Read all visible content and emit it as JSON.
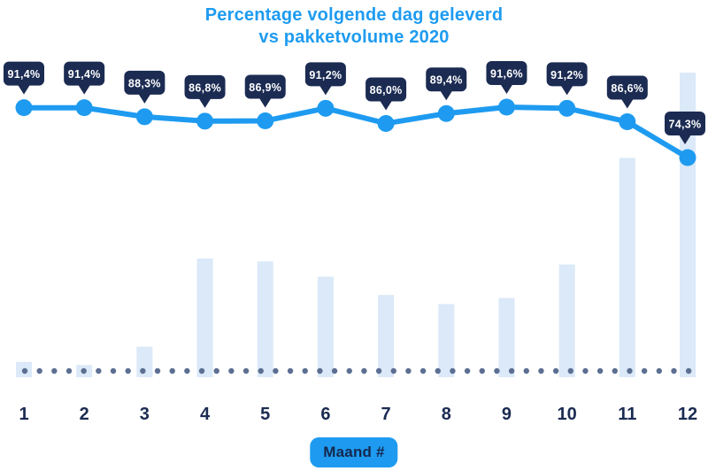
{
  "title": {
    "line1": "Percentage volgende dag geleverd",
    "line2": "vs pakketvolume 2020"
  },
  "x_axis": {
    "badge_label": "Maand #",
    "categories": [
      "1",
      "2",
      "3",
      "4",
      "5",
      "6",
      "7",
      "8",
      "9",
      "10",
      "11",
      "12"
    ]
  },
  "colors": {
    "accent_blue": "#1E9BF0",
    "navy": "#1B2B52",
    "bar_fill": "#DBE9F8",
    "baseline_dot": "#5C6F92",
    "badge_text": "#FFFFFF",
    "background": "#FFFFFF"
  },
  "chart_data": {
    "type": "combo",
    "title": "Percentage volgende dag geleverd vs pakketvolume 2020",
    "xlabel": "Maand #",
    "ylabel": "",
    "categories": [
      "1",
      "2",
      "3",
      "4",
      "5",
      "6",
      "7",
      "8",
      "9",
      "10",
      "11",
      "12"
    ],
    "legend": "none",
    "gridlines": "none",
    "series": [
      {
        "name": "Percentage volgende dag geleverd",
        "type": "line",
        "values": [
          91.4,
          91.4,
          88.3,
          86.8,
          86.9,
          91.2,
          86.0,
          89.4,
          91.6,
          91.2,
          86.6,
          74.3
        ],
        "point_labels": [
          "91,4%",
          "91,4%",
          "88,3%",
          "86,8%",
          "86,9%",
          "91,2%",
          "86,0%",
          "89,4%",
          "91,6%",
          "91,2%",
          "86,6%",
          "74,3%"
        ],
        "value_range_shown": [
          74.3,
          91.6
        ],
        "color": "#1E9BF0",
        "badge_color": "#1B2B52"
      },
      {
        "name": "Pakketvolume 2020",
        "type": "bar",
        "values_relative_pct_of_max": [
          5,
          4,
          10,
          39,
          38,
          33,
          27,
          24,
          26,
          37,
          72,
          100
        ],
        "units": "relative volume (december 2020 = 100)",
        "color": "#DBE9F8"
      }
    ],
    "baseline": {
      "style": "dotted",
      "color": "#5C6F92"
    }
  }
}
